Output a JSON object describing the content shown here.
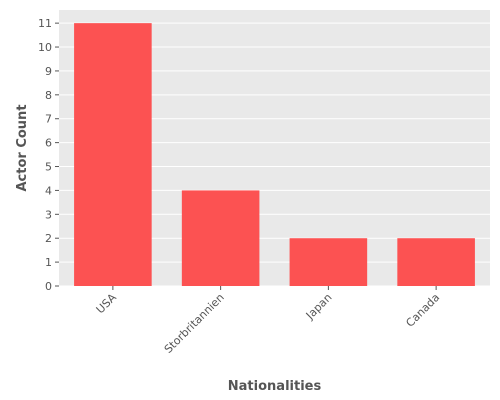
{
  "chart_data": {
    "type": "bar",
    "title": "",
    "xlabel": "Nationalities",
    "ylabel": "Actor Count",
    "categories": [
      "USA",
      "Storbritannien",
      "Japan",
      "Canada"
    ],
    "values": [
      11,
      4,
      2,
      2
    ],
    "ylim": [
      0,
      11.55
    ],
    "yticks": [
      0,
      1,
      2,
      3,
      4,
      5,
      6,
      7,
      8,
      9,
      10,
      11
    ],
    "grid": true,
    "legend": "none",
    "colors": {
      "bar": "#fc5252",
      "plot_background": "#e9e9e9",
      "grid": "#ffffff",
      "text": "#555555"
    }
  }
}
